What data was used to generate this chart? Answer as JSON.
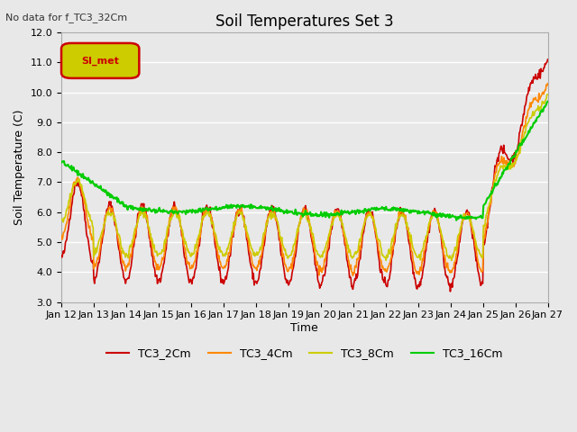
{
  "title": "Soil Temperatures Set 3",
  "top_left_text": "No data for f_TC3_32Cm",
  "ylabel": "Soil Temperature (C)",
  "xlabel": "Time",
  "ylim": [
    3.0,
    12.0
  ],
  "yticks": [
    3.0,
    4.0,
    5.0,
    6.0,
    7.0,
    8.0,
    9.0,
    10.0,
    11.0,
    12.0
  ],
  "bg_color": "#e8e8e8",
  "grid_color": "#ffffff",
  "legend_box_color": "#cccc00",
  "legend_box_text": "SI_met",
  "series": {
    "TC3_2Cm": {
      "color": "#cc0000",
      "lw": 1.2
    },
    "TC3_4Cm": {
      "color": "#ff8800",
      "lw": 1.2
    },
    "TC3_8Cm": {
      "color": "#cccc00",
      "lw": 1.2
    },
    "TC3_16Cm": {
      "color": "#00cc00",
      "lw": 1.5
    }
  },
  "x_tick_labels": [
    "Jan 12",
    "Jan 13",
    "Jan 14",
    "Jan 15",
    "Jan 16",
    "Jan 17",
    "Jan 18",
    "Jan 19",
    "Jan 20",
    "Jan 21",
    "Jan 22",
    "Jan 23",
    "Jan 24",
    "Jan 25",
    "Jan 26",
    "Jan 27"
  ],
  "n_days": 15,
  "points_per_day": 48
}
